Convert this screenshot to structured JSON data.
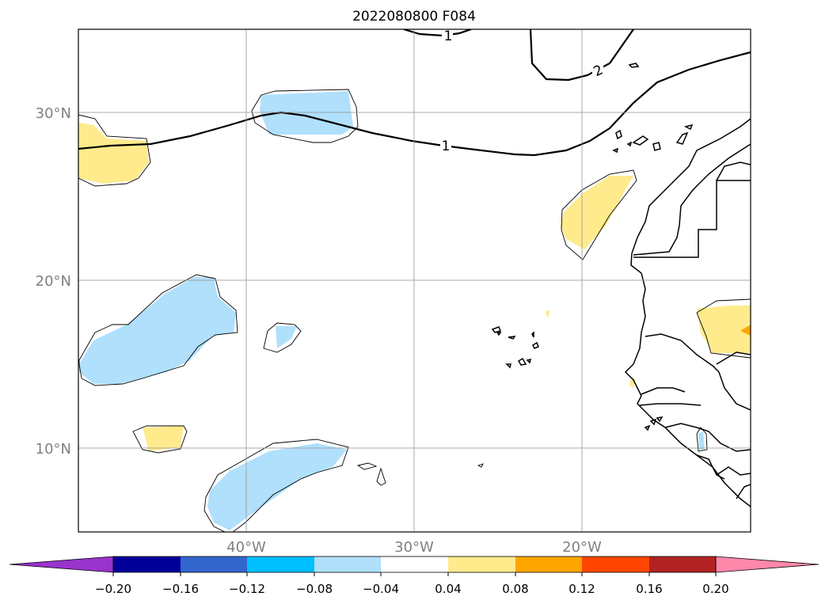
{
  "title": "2022080800 F084",
  "map": {
    "lat_labels": [
      "30°N",
      "20°N",
      "10°N"
    ],
    "lon_labels": [
      "40°W",
      "30°W",
      "20°W"
    ],
    "contour_labels": [
      "1",
      "2",
      "1"
    ]
  },
  "colorbar": {
    "ticks": [
      "−0.20",
      "−0.16",
      "−0.12",
      "−0.08",
      "−0.04",
      "0.04",
      "0.08",
      "0.12",
      "0.16",
      "0.20"
    ],
    "colors": [
      "#9933cc",
      "#000099",
      "#3366cc",
      "#00bfff",
      "#b0e0fc",
      "#ffffff",
      "#ffeb8c",
      "#ffa500",
      "#ff4500",
      "#b22222",
      "#ff88aa",
      "#ff88aa"
    ]
  }
}
